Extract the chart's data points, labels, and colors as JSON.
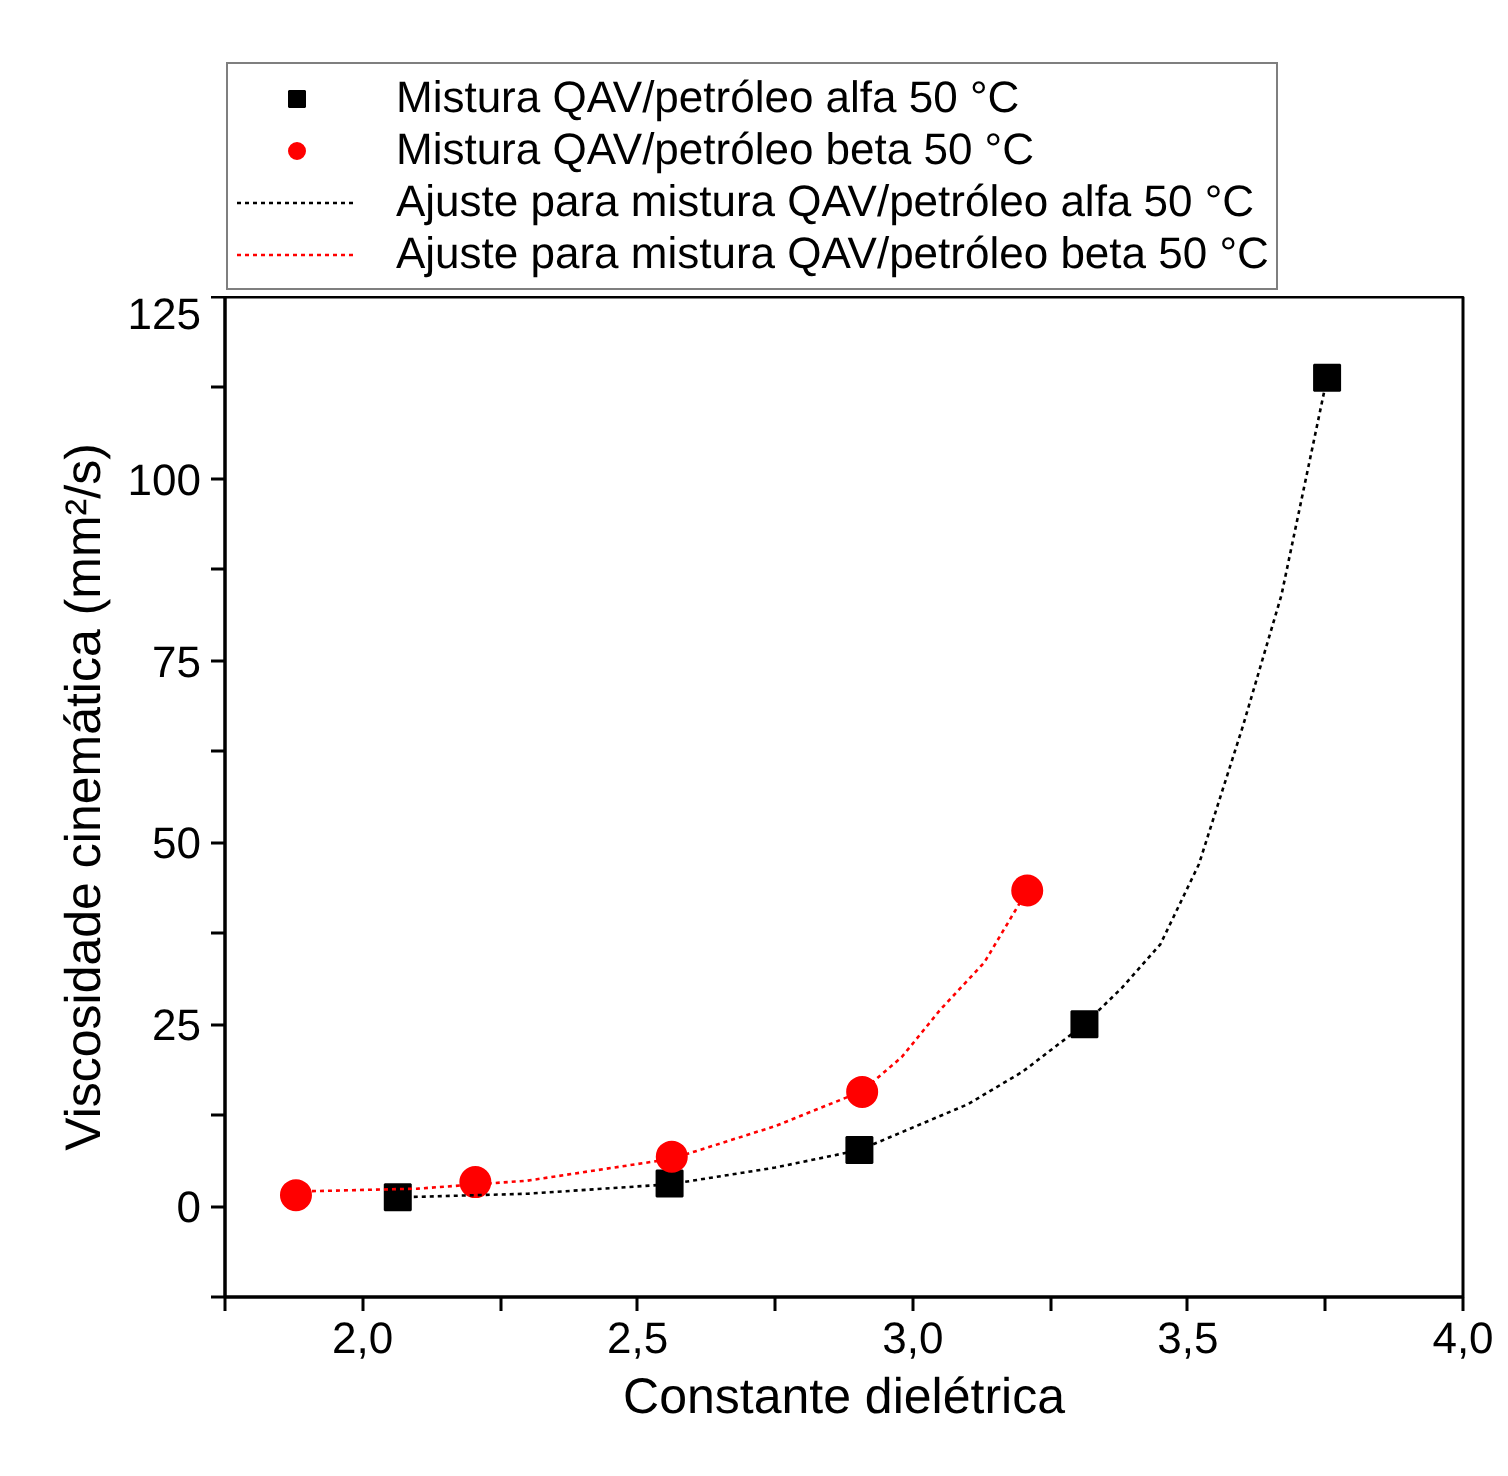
{
  "chart_data": {
    "type": "scatter",
    "xlabel": "Constante dielétrica",
    "ylabel": "Viscosidade cinemática (mm²/s)",
    "series": [
      {
        "name": "Mistura QAV/petróleo alfa 50 °C",
        "type": "scatter",
        "marker": "square",
        "color": "#000000",
        "x": [
          2.064,
          2.558,
          2.903,
          3.312,
          3.753
        ],
        "values": [
          1.2,
          3.1,
          7.7,
          25.0,
          113.9
        ]
      },
      {
        "name": "Mistura QAV/petróleo beta 50 °C",
        "type": "scatter",
        "marker": "circle",
        "color": "#ff0000",
        "x": [
          1.879,
          2.205,
          2.562,
          2.908,
          3.208
        ],
        "values": [
          1.5,
          3.3,
          6.8,
          15.7,
          43.4
        ]
      },
      {
        "name": "Ajuste para mistura QAV/petróleo alfa 50 °C",
        "type": "line",
        "line_style": "dotted",
        "color": "#000000",
        "x": [
          2.064,
          2.3,
          2.558,
          2.75,
          2.903,
          3.1,
          3.2,
          3.312,
          3.38,
          3.45,
          3.52,
          3.6,
          3.67,
          3.753
        ],
        "values": [
          1.2,
          1.7,
          3.0,
          5.3,
          7.7,
          14.0,
          18.5,
          25.0,
          30.0,
          36.0,
          47.0,
          66.0,
          84.0,
          113.9
        ]
      },
      {
        "name": "Ajuste para mistura QAV/petróleo beta 50 °C",
        "type": "line",
        "line_style": "dotted",
        "color": "#ff0000",
        "x": [
          1.879,
          2.1,
          2.3,
          2.562,
          2.75,
          2.908,
          2.98,
          3.05,
          3.13,
          3.208
        ],
        "values": [
          2.0,
          2.4,
          3.5,
          6.5,
          11.0,
          15.8,
          20.5,
          27.0,
          33.5,
          43.4
        ]
      }
    ],
    "xlim": [
      1.75,
      4.0
    ],
    "xticks": [
      {
        "value": 1.75,
        "label": null
      },
      {
        "value": 2.0,
        "label": "2,0"
      },
      {
        "value": 2.25,
        "label": null
      },
      {
        "value": 2.5,
        "label": "2,5"
      },
      {
        "value": 2.75,
        "label": null
      },
      {
        "value": 3.0,
        "label": "3,0"
      },
      {
        "value": 3.25,
        "label": null
      },
      {
        "value": 3.5,
        "label": "3,5"
      },
      {
        "value": 3.75,
        "label": null
      },
      {
        "value": 4.0,
        "label": "4,0"
      }
    ],
    "ylim": [
      -12.5,
      125
    ],
    "yticks": [
      {
        "value": -12.5,
        "label": null
      },
      0,
      {
        "value": 12.5,
        "label": null
      },
      25,
      {
        "value": 37.5,
        "label": null
      },
      50,
      {
        "value": 62.5,
        "label": null
      },
      75,
      {
        "value": 87.5,
        "label": null
      },
      100,
      {
        "value": 112.5,
        "label": null
      },
      125
    ],
    "grid": false,
    "legend": "top"
  }
}
